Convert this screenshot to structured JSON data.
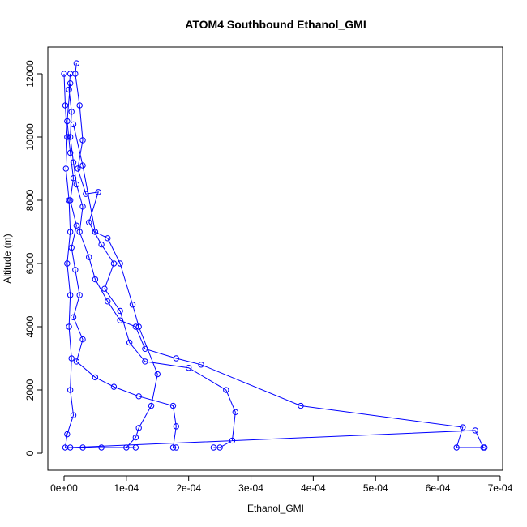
{
  "chart_data": {
    "type": "line",
    "title": "ATOM4 Southbound Ethanol_GMI",
    "x_label": "Ethanol_GMI",
    "y_label": "Altitude (m)",
    "xlim": [
      -2.6e-05,
      0.000704
    ],
    "ylim": [
      -538,
      12846
    ],
    "xticks": [
      {
        "value": 0,
        "label": "0e+00"
      },
      {
        "value": 0.0001,
        "label": "1e-04"
      },
      {
        "value": 0.0002,
        "label": "2e-04"
      },
      {
        "value": 0.0003,
        "label": "3e-04"
      },
      {
        "value": 0.0004,
        "label": "4e-04"
      },
      {
        "value": 0.0005,
        "label": "5e-04"
      },
      {
        "value": 0.0006,
        "label": "6e-04"
      },
      {
        "value": 0.0007,
        "label": "7e-04"
      }
    ],
    "yticks": [
      0,
      2000,
      4000,
      6000,
      8000,
      10000,
      12000
    ],
    "series": [
      {
        "color": "#0000ff",
        "x": [
          1e-05,
          8e-06,
          1.2e-05,
          1e-05,
          1.5e-05,
          2e-05,
          3e-05,
          2.5e-05,
          4e-05,
          5e-05,
          7e-05,
          9e-05,
          0.000115,
          0.00013,
          0.00018,
          0.00022,
          0.00038,
          0.00064,
          0.00063,
          0.000675,
          null,
          2e-05,
          1.8e-05,
          2.5e-05,
          3e-05,
          2.2e-05,
          3.5e-05,
          5.5e-05,
          4e-05,
          6e-05,
          8e-05,
          6.5e-05,
          9e-05,
          0.000105,
          0.00013,
          0.0002,
          0.00026,
          0.000275,
          0.00027,
          0.00025,
          0.00024,
          null,
          1e-05,
          5e-06,
          1e-05,
          1.5e-05,
          1e-05,
          2e-05,
          1.2e-05,
          1.8e-05,
          2.5e-05,
          1.5e-05,
          3e-05,
          2e-05,
          5e-05,
          8e-05,
          0.00012,
          0.000175,
          0.00018,
          0.000175,
          0.00018,
          null,
          0,
          2e-06,
          5e-06,
          3e-06,
          8e-06,
          1e-05,
          5e-06,
          1e-05,
          8e-06,
          1.2e-05,
          1e-05,
          1.5e-05,
          5e-06,
          2e-06,
          1e-05,
          0.00066,
          0.000673,
          null,
          1.5e-05,
          3e-05,
          5e-05,
          7e-05,
          9e-05,
          0.00011,
          0.00012,
          0.00015,
          0.00014,
          0.00012,
          0.000115,
          0.0001,
          0.000115,
          6e-05,
          3e-05
        ],
        "values": [
          12000,
          11500,
          10800,
          10000,
          9200,
          8500,
          7800,
          7000,
          6200,
          5500,
          4800,
          4200,
          4000,
          3300,
          3000,
          2800,
          1500,
          820,
          180,
          180,
          null,
          12330,
          12000,
          11000,
          9900,
          9000,
          8200,
          8260,
          7300,
          6600,
          6000,
          5200,
          4500,
          3500,
          2900,
          2700,
          2000,
          1300,
          400,
          180,
          180,
          null,
          11700,
          10500,
          9500,
          8700,
          8000,
          7200,
          6500,
          5800,
          5000,
          4300,
          3600,
          2900,
          2400,
          2100,
          1800,
          1500,
          850,
          180,
          180,
          null,
          12000,
          11000,
          10000,
          9000,
          8000,
          7000,
          6000,
          5000,
          4000,
          3000,
          2000,
          1200,
          600,
          180,
          180,
          720,
          180,
          null,
          10400,
          9100,
          7000,
          6800,
          6000,
          4700,
          4000,
          2500,
          1500,
          800,
          500,
          180,
          180,
          180,
          180
        ]
      }
    ]
  }
}
